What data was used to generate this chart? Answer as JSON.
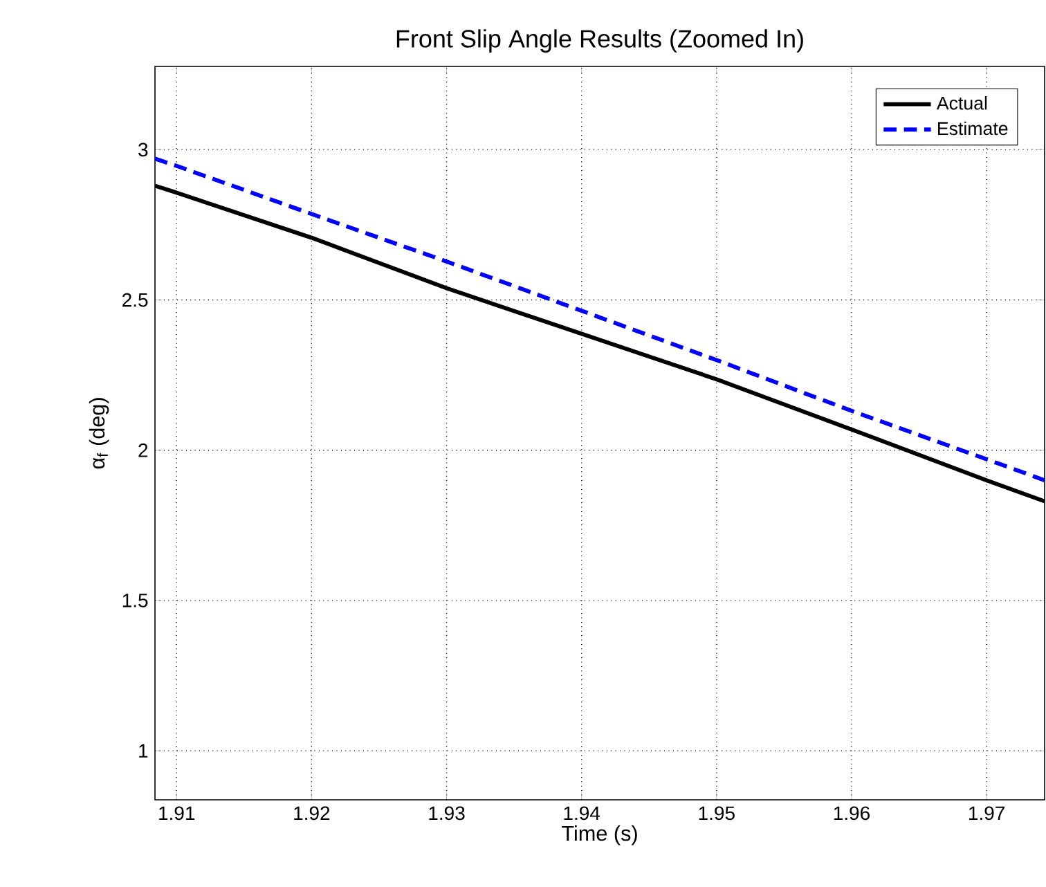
{
  "chart_data": {
    "type": "line",
    "title": "Front Slip Angle Results (Zoomed In)",
    "xlabel": "Time (s)",
    "ylabel": "α$_{f}$ (deg)",
    "xlim": [
      1.9084,
      1.9743
    ],
    "ylim": [
      0.837,
      3.277
    ],
    "xticks": [
      1.91,
      1.92,
      1.93,
      1.94,
      1.95,
      1.96,
      1.97
    ],
    "yticks": [
      1,
      1.5,
      2,
      2.5,
      3
    ],
    "grid": true,
    "legend": "top right",
    "series": [
      {
        "name": "Actual",
        "color": "#000000",
        "line_style": "solid",
        "x": [
          1.9084,
          1.91,
          1.92,
          1.93,
          1.95,
          1.96,
          1.97,
          1.9743
        ],
        "values": [
          2.88,
          2.857,
          2.707,
          2.539,
          2.236,
          2.069,
          1.9,
          1.83
        ]
      },
      {
        "name": "Estimate",
        "color": "#0000ff",
        "line_style": "dashed",
        "x": [
          1.9084,
          1.91,
          1.92,
          1.93,
          1.95,
          1.96,
          1.97,
          1.9743
        ],
        "values": [
          2.97,
          2.946,
          2.786,
          2.628,
          2.3,
          2.131,
          1.97,
          1.9
        ]
      }
    ]
  }
}
